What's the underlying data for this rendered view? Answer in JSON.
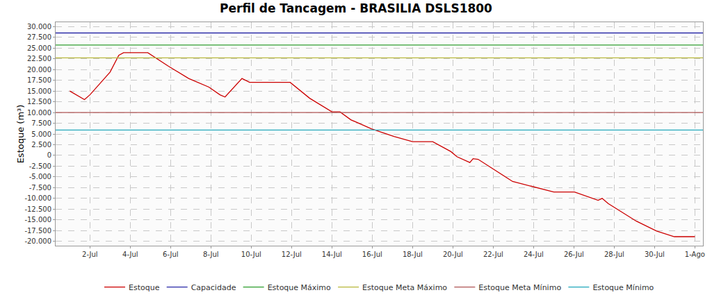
{
  "chart_data": {
    "type": "line",
    "title": "Perfil de Tancagem - BRASILIA DSLS1800",
    "y_label": "Estoque (m³)",
    "grid": true,
    "legend": "bottom",
    "xlim": [
      0.3,
      32.4
    ],
    "xticks": [
      {
        "value": 2,
        "label": "2-Jul"
      },
      {
        "value": 4,
        "label": "4-Jul"
      },
      {
        "value": 6,
        "label": "6-Jul"
      },
      {
        "value": 8,
        "label": "8-Jul"
      },
      {
        "value": 10,
        "label": "10-Jul"
      },
      {
        "value": 12,
        "label": "12-Jul"
      },
      {
        "value": 14,
        "label": "14-Jul"
      },
      {
        "value": 16,
        "label": "16-Jul"
      },
      {
        "value": 18,
        "label": "18-Jul"
      },
      {
        "value": 20,
        "label": "20-Jul"
      },
      {
        "value": 22,
        "label": "22-Jul"
      },
      {
        "value": 24,
        "label": "24-Jul"
      },
      {
        "value": 26,
        "label": "26-Jul"
      },
      {
        "value": 28,
        "label": "28-Jul"
      },
      {
        "value": 30,
        "label": "30-Jul"
      },
      {
        "value": 32,
        "label": "1-Ago"
      }
    ],
    "ylim": [
      -21000,
      31000
    ],
    "yticks": [
      {
        "value": 30000,
        "label": "30.000"
      },
      {
        "value": 27500,
        "label": "27.500"
      },
      {
        "value": 25000,
        "label": "25.000"
      },
      {
        "value": 22500,
        "label": "22.500"
      },
      {
        "value": 20000,
        "label": "20.000"
      },
      {
        "value": 17500,
        "label": "17.500"
      },
      {
        "value": 15000,
        "label": "15.000"
      },
      {
        "value": 12500,
        "label": "12.500"
      },
      {
        "value": 10000,
        "label": "10.000"
      },
      {
        "value": 7500,
        "label": "7.500"
      },
      {
        "value": 5000,
        "label": "5.000"
      },
      {
        "value": 2500,
        "label": "2.500"
      },
      0,
      {
        "value": -2500,
        "label": "-2.500"
      },
      {
        "value": -5000,
        "label": "-5.000"
      },
      {
        "value": -7500,
        "label": "-7.500"
      },
      {
        "value": -10000,
        "label": "-10.000"
      },
      {
        "value": -12500,
        "label": "-12.500"
      },
      {
        "value": -15000,
        "label": "-15.000"
      },
      {
        "value": -17500,
        "label": "-17.500"
      },
      {
        "value": -20000,
        "label": "-20.000"
      }
    ],
    "series": [
      {
        "name": "Estoque",
        "color": "#cc0000",
        "x": [
          1,
          1.73,
          2,
          3,
          3.43,
          3.67,
          4.87,
          5.9,
          6.9,
          7.9,
          8.45,
          8.7,
          9.54,
          9.92,
          11.93,
          12.9,
          14.0,
          14.4,
          14.94,
          15.96,
          17.08,
          18.0,
          19.0,
          19.9,
          20.2,
          20.63,
          20.84,
          21.0,
          21.25,
          22.96,
          23.98,
          25.0,
          26.03,
          27.2,
          27.4,
          27.7,
          29.1,
          30.1,
          30.98,
          32
        ],
        "values": [
          15000,
          13000,
          14100,
          19400,
          23300,
          23900,
          23900,
          20750,
          17900,
          15900,
          14100,
          13600,
          17900,
          17000,
          17000,
          13300,
          10150,
          10150,
          8300,
          6200,
          4400,
          3200,
          3200,
          900,
          -300,
          -1200,
          -1650,
          -750,
          -900,
          -6050,
          -7250,
          -8500,
          -8500,
          -10450,
          -10000,
          -11200,
          -15300,
          -17600,
          -18900,
          -18900
        ]
      },
      {
        "name": "Capacidade",
        "color": "#2b2ba8",
        "x": [
          0.3,
          32.4
        ],
        "values": [
          28500,
          28500
        ]
      },
      {
        "name": "Estoque Máximo",
        "color": "#2f9e2f",
        "x": [
          0.3,
          32.4
        ],
        "values": [
          25700,
          25700
        ]
      },
      {
        "name": "Estoque Meta Máximo",
        "color": "#b8b83c",
        "x": [
          0.3,
          32.4
        ],
        "values": [
          22700,
          22700
        ]
      },
      {
        "name": "Estoque Meta Mínimo",
        "color": "#b05656",
        "x": [
          0.3,
          32.4
        ],
        "values": [
          10000,
          10000
        ]
      },
      {
        "name": "Estoque Mínimo",
        "color": "#23a9bb",
        "x": [
          0.3,
          32.4
        ],
        "values": [
          5900,
          5900
        ]
      }
    ]
  }
}
